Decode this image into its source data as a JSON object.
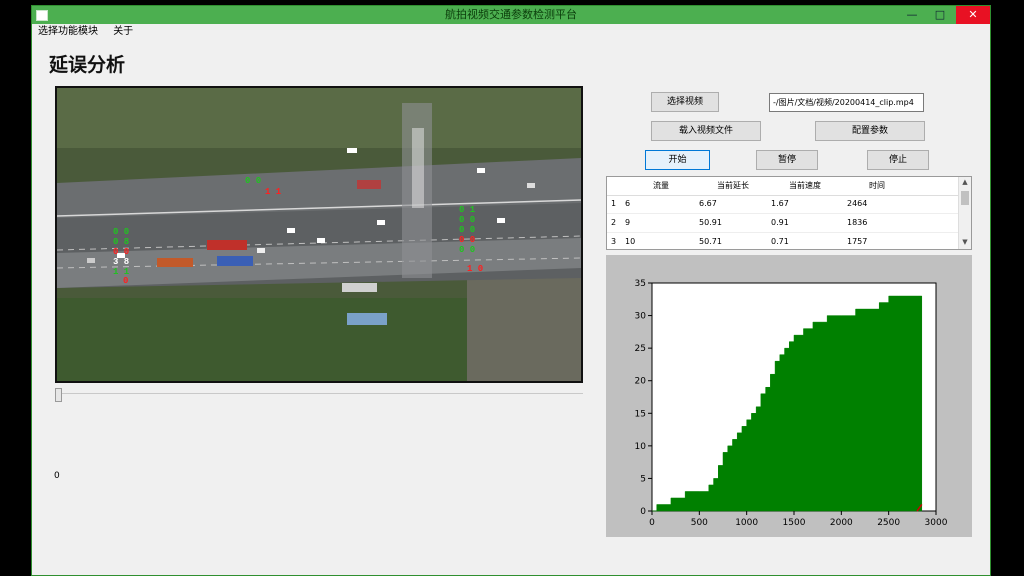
{
  "window": {
    "title": "航拍视频交通参数检测平台",
    "controls": {
      "minimize": "—",
      "maximize": "□",
      "close": "✕"
    }
  },
  "menu": [
    "选择功能模块",
    "关于"
  ],
  "page_title": "延误分析",
  "video": {
    "left_markers": [
      "0 0",
      "0 8",
      "0 0",
      "3 8",
      "1 1",
      "0"
    ],
    "right_markers": [
      "0 1",
      "0 0",
      "0 0",
      "0 0",
      "0 0",
      "1 0"
    ],
    "top_marker": "0 0",
    "top_red": "1 1"
  },
  "frame_counter": "0",
  "buttons": {
    "select_video": "选择视频",
    "load_video_file": "载入视频文件",
    "settings": "配置参数",
    "start": "开始",
    "pause": "暂停",
    "stop": "停止"
  },
  "path_field": {
    "value": "-/图片/文档/视频/20200414_clip.mp4"
  },
  "table": {
    "headers": [
      "",
      "流量",
      "当前延长",
      "当前速度",
      "时间"
    ],
    "rows": [
      [
        "1",
        "6",
        "6.67",
        "1.67",
        "2464"
      ],
      [
        "2",
        "9",
        "50.91",
        "0.91",
        "1836"
      ],
      [
        "3",
        "10",
        "50.71",
        "0.71",
        "1757"
      ]
    ]
  },
  "chart_data": {
    "type": "area",
    "title": "",
    "xlabel": "",
    "ylabel": "",
    "xlim": [
      0,
      3000
    ],
    "ylim": [
      0,
      35
    ],
    "xticks": [
      0,
      500,
      1000,
      1500,
      2000,
      2500,
      3000
    ],
    "yticks": [
      0,
      5,
      10,
      15,
      20,
      25,
      30,
      35
    ],
    "grid": false,
    "series": [
      {
        "color": "#008000",
        "step": true,
        "x": [
          0,
          50,
          200,
          350,
          500,
          600,
          650,
          700,
          750,
          800,
          850,
          900,
          950,
          1000,
          1050,
          1100,
          1150,
          1200,
          1250,
          1300,
          1350,
          1400,
          1450,
          1500,
          1600,
          1700,
          1800,
          1850,
          2000,
          2100,
          2150,
          2250,
          2400,
          2500,
          2600,
          2800,
          2850
        ],
        "y": [
          0,
          1,
          2,
          3,
          3,
          4,
          5,
          7,
          9,
          10,
          11,
          12,
          13,
          14,
          15,
          16,
          18,
          19,
          21,
          23,
          24,
          25,
          26,
          27,
          28,
          29,
          29,
          30,
          30,
          30,
          31,
          31,
          32,
          33,
          33,
          33,
          0
        ]
      },
      {
        "color": "#cc0000",
        "x": [
          2800,
          2850
        ],
        "y": [
          0,
          1
        ]
      }
    ]
  },
  "colors": {
    "titlebar": "#4caf50",
    "chart_fill": "#008000",
    "marker_green": "#22c122",
    "marker_red": "#ff2020"
  }
}
